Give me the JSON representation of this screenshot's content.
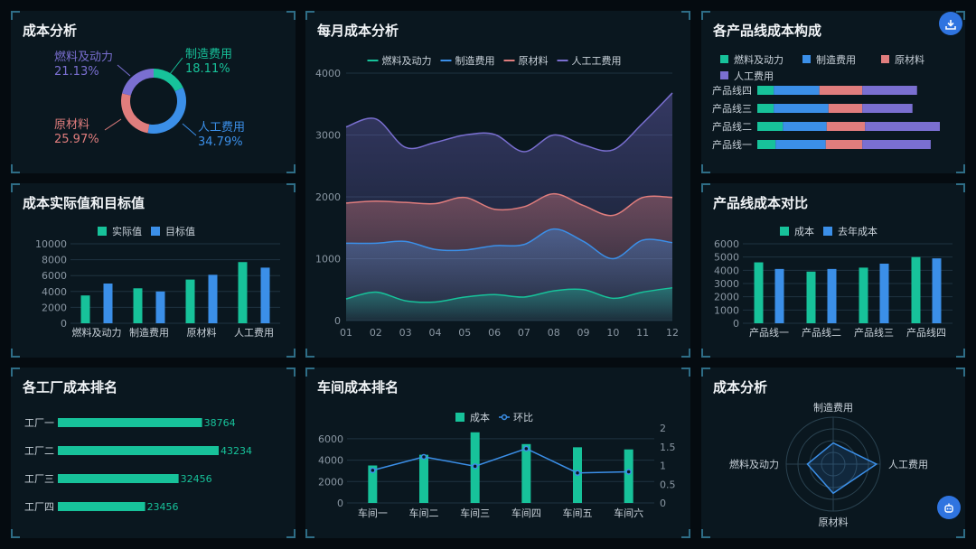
{
  "colors": {
    "fuel": "#17c29a",
    "manufacturing": "#3b8fe8",
    "material": "#e07d7d",
    "labor": "#7a6fd1",
    "actual": "#17c29a",
    "target": "#3b8fe8"
  },
  "panels": {
    "p1": "成本分析",
    "p2": "每月成本分析",
    "p3": "各产品线成本构成",
    "p4": "成本实际值和目标值",
    "p5": "产品线成本对比",
    "p6": "各工厂成本排名",
    "p7": "车间成本排名",
    "p8": "成本分析"
  },
  "buttons": {
    "download_icon": "download-icon",
    "assistant_icon": "robot-icon"
  },
  "chart_data": [
    {
      "id": "donut",
      "type": "pie",
      "slices": [
        {
          "name": "制造费用",
          "value": 18.11,
          "pct": "18.11%",
          "color": "#17c29a"
        },
        {
          "name": "人工费用",
          "value": 34.79,
          "pct": "34.79%",
          "color": "#3b8fe8"
        },
        {
          "name": "原材料",
          "value": 25.97,
          "pct": "25.97%",
          "color": "#e07d7d"
        },
        {
          "name": "燃料及动力",
          "value": 21.13,
          "pct": "21.13%",
          "color": "#7a6fd1"
        }
      ]
    },
    {
      "id": "monthly",
      "type": "area",
      "stacked": true,
      "legend": [
        "燃料及动力",
        "制造费用",
        "原材料",
        "人工工费用"
      ],
      "x": [
        "01",
        "02",
        "03",
        "04",
        "05",
        "06",
        "07",
        "08",
        "09",
        "10",
        "11",
        "12"
      ],
      "ylim": [
        0,
        4000
      ],
      "yticks": [
        "0",
        "1000",
        "2000",
        "3000",
        "4000"
      ],
      "series": [
        {
          "name": "燃料及动力",
          "color": "#17c29a",
          "values": [
            350,
            460,
            320,
            300,
            380,
            420,
            380,
            480,
            500,
            360,
            460,
            530
          ]
        },
        {
          "name": "制造费用",
          "color": "#3b8fe8",
          "values": [
            1250,
            1250,
            1280,
            1150,
            1140,
            1210,
            1230,
            1480,
            1280,
            1000,
            1300,
            1260
          ]
        },
        {
          "name": "原材料",
          "color": "#e07d7d",
          "values": [
            1900,
            1930,
            1910,
            1890,
            1990,
            1800,
            1840,
            2050,
            1860,
            1700,
            1990,
            1990
          ]
        },
        {
          "name": "人工工费用",
          "color": "#7a6fd1",
          "values": [
            3130,
            3260,
            2800,
            2880,
            3000,
            3010,
            2730,
            3000,
            2840,
            2760,
            3190,
            3680
          ]
        }
      ]
    },
    {
      "id": "composition",
      "type": "bar",
      "orientation": "horizontal",
      "stacked": true,
      "legend": [
        "燃料及动力",
        "制造费用",
        "原材料",
        "人工费用"
      ],
      "categories": [
        "产品线四",
        "产品线三",
        "产品线二",
        "产品线一"
      ],
      "series": [
        {
          "name": "燃料及动力",
          "color": "#17c29a",
          "values": [
            18,
            18,
            28,
            20
          ]
        },
        {
          "name": "制造费用",
          "color": "#3b8fe8",
          "values": [
            50,
            60,
            48,
            55
          ]
        },
        {
          "name": "原材料",
          "color": "#e07d7d",
          "values": [
            47,
            37,
            42,
            40
          ]
        },
        {
          "name": "人工费用",
          "color": "#7a6fd1",
          "values": [
            60,
            55,
            82,
            75
          ]
        }
      ]
    },
    {
      "id": "actual-target",
      "type": "bar",
      "legend": [
        "实际值",
        "目标值"
      ],
      "categories": [
        "燃料及动力",
        "制造费用",
        "原材料",
        "人工费用"
      ],
      "ylim": [
        0,
        10000
      ],
      "yticks": [
        "0",
        "2000",
        "4000",
        "6000",
        "8000",
        "10000"
      ],
      "series": [
        {
          "name": "实际值",
          "color": "#17c29a",
          "values": [
            3500,
            4400,
            5500,
            7700
          ]
        },
        {
          "name": "目标值",
          "color": "#3b8fe8",
          "values": [
            5000,
            4000,
            6100,
            7000
          ]
        }
      ]
    },
    {
      "id": "line-compare",
      "type": "bar",
      "legend": [
        "成本",
        "去年成本"
      ],
      "categories": [
        "产品线一",
        "产品线二",
        "产品线三",
        "产品线四"
      ],
      "ylim": [
        0,
        6000
      ],
      "yticks": [
        "0",
        "1000",
        "2000",
        "3000",
        "4000",
        "5000",
        "6000"
      ],
      "series": [
        {
          "name": "成本",
          "color": "#17c29a",
          "values": [
            4600,
            3900,
            4200,
            5000
          ]
        },
        {
          "name": "去年成本",
          "color": "#3b8fe8",
          "values": [
            4100,
            4100,
            4500,
            4900
          ]
        }
      ]
    },
    {
      "id": "factory-rank",
      "type": "bar",
      "orientation": "horizontal",
      "categories": [
        "工厂一",
        "工厂二",
        "工厂三",
        "工厂四"
      ],
      "labels": [
        "38764",
        "43234",
        "32456",
        "23456"
      ],
      "values": [
        38764,
        43234,
        32456,
        23456
      ],
      "xlim": [
        0,
        43234
      ]
    },
    {
      "id": "workshop-rank",
      "type": "bar",
      "legend": [
        "成本",
        "环比"
      ],
      "categories": [
        "车间一",
        "车间二",
        "车间三",
        "车间四",
        "车间五",
        "车间六"
      ],
      "ylim": [
        0,
        7000
      ],
      "yticks": [
        "0",
        "2000",
        "4000",
        "6000"
      ],
      "y2lim": [
        0,
        2
      ],
      "y2ticks": [
        "0",
        "0.5",
        "1",
        "1.5",
        "2"
      ],
      "series": [
        {
          "name": "成本",
          "type": "bar",
          "color": "#17c29a",
          "values": [
            3500,
            4500,
            6600,
            5500,
            5200,
            5000
          ]
        },
        {
          "name": "环比",
          "type": "line",
          "color": "#3b8fe8",
          "values": [
            0.87,
            1.23,
            0.98,
            1.45,
            0.8,
            0.83
          ]
        }
      ]
    },
    {
      "id": "radar",
      "type": "radar",
      "indicators": [
        "制造费用",
        "人工费用",
        "原材料",
        "燃料及动力"
      ],
      "values": [
        0.45,
        0.92,
        0.62,
        0.55
      ]
    }
  ]
}
